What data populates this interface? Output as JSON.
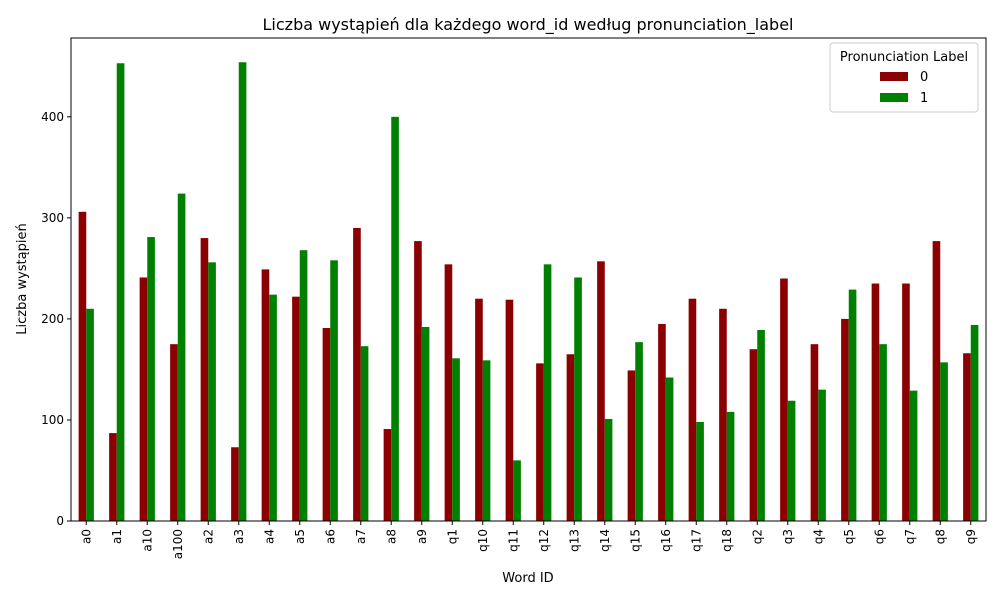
{
  "chart_data": {
    "type": "bar",
    "title": "Liczba wystąpień dla każdego word_id według pronunciation_label",
    "xlabel": "Word ID",
    "ylabel": "Liczba wystąpień",
    "ylim": [
      0,
      478
    ],
    "yticks": [
      0,
      100,
      200,
      300,
      400
    ],
    "grid": false,
    "legend": {
      "title": "Pronunciation Label",
      "placement": "top-right"
    },
    "categories": [
      "a0",
      "a1",
      "a10",
      "a100",
      "a2",
      "a3",
      "a4",
      "a5",
      "a6",
      "a7",
      "a8",
      "a9",
      "q1",
      "q10",
      "q11",
      "q12",
      "q13",
      "q14",
      "q15",
      "q16",
      "q17",
      "q18",
      "q2",
      "q3",
      "q4",
      "q5",
      "q6",
      "q7",
      "q8",
      "q9"
    ],
    "series": [
      {
        "name": "0",
        "color": "#8b0000",
        "values": [
          306,
          87,
          241,
          175,
          280,
          73,
          249,
          222,
          191,
          290,
          91,
          277,
          254,
          220,
          219,
          156,
          165,
          257,
          149,
          195,
          220,
          210,
          170,
          240,
          175,
          200,
          235,
          235,
          277,
          166
        ]
      },
      {
        "name": "1",
        "color": "#008000",
        "values": [
          210,
          453,
          281,
          324,
          256,
          454,
          224,
          268,
          258,
          173,
          400,
          192,
          161,
          159,
          60,
          254,
          241,
          101,
          177,
          142,
          98,
          108,
          189,
          119,
          130,
          229,
          175,
          129,
          157,
          194
        ]
      }
    ]
  }
}
